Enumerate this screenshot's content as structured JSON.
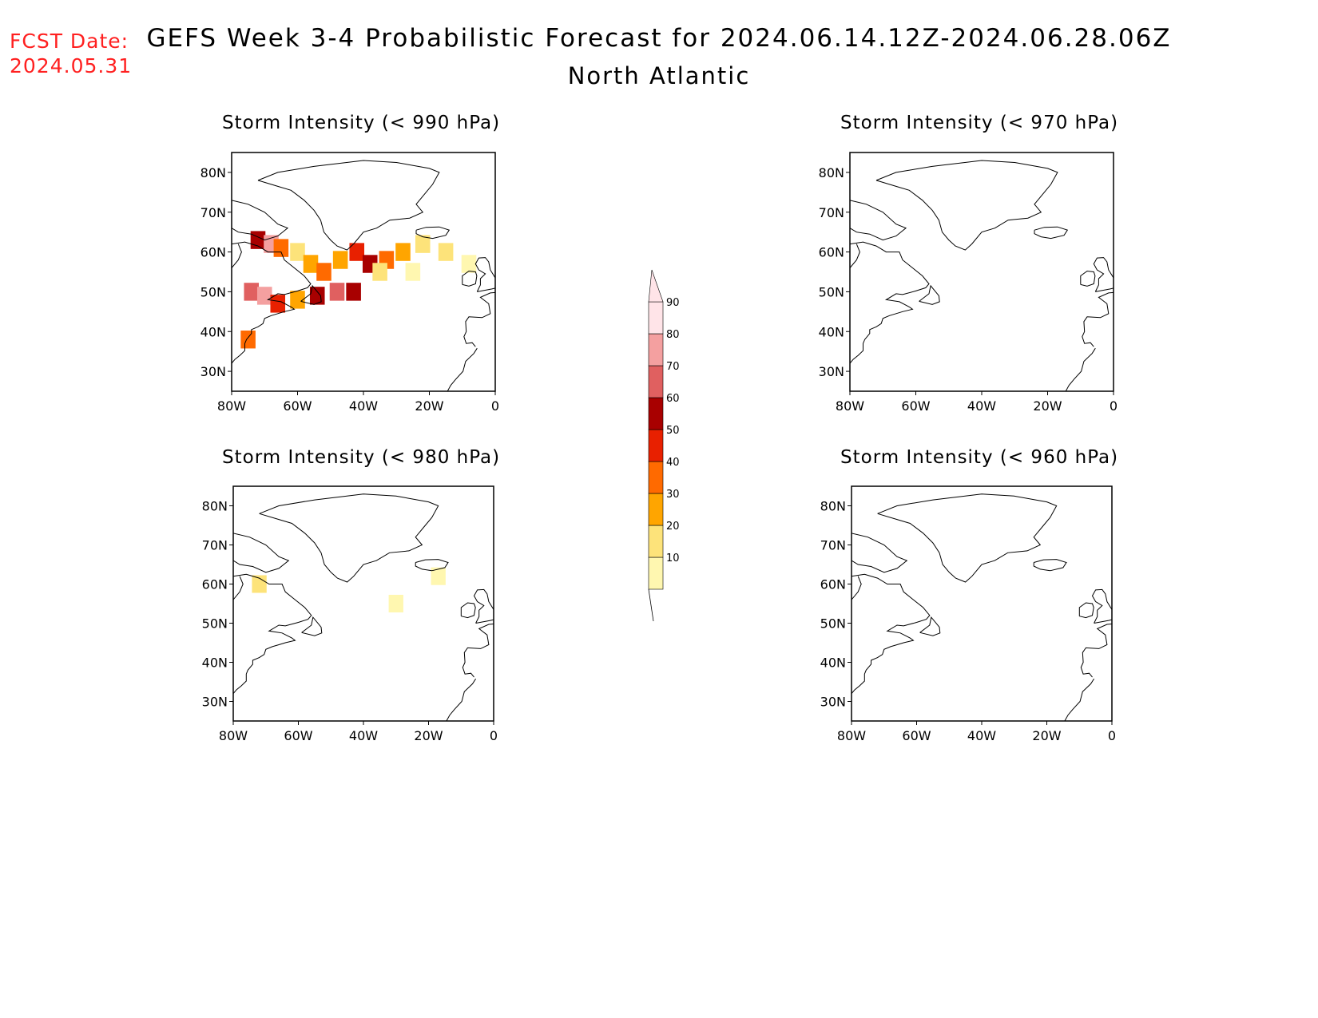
{
  "header": {
    "fcst_label": "FCST Date:",
    "fcst_date": "2024.05.31",
    "title": "GEFS Week 3-4 Probabilistic Forecast for 2024.06.14.12Z-2024.06.28.06Z",
    "subtitle": "North Atlantic"
  },
  "axes": {
    "lat_labels": [
      "80N",
      "70N",
      "60N",
      "50N",
      "40N",
      "30N"
    ],
    "lon_labels": [
      "80W",
      "60W",
      "40W",
      "20W",
      "0"
    ]
  },
  "panels": [
    {
      "title": "Storm Intensity (< 990 hPa)"
    },
    {
      "title": "Storm Intensity (< 970 hPa)"
    },
    {
      "title": "Storm Intensity (< 980 hPa)"
    },
    {
      "title": "Storm Intensity (< 960 hPa)"
    }
  ],
  "colorbar": {
    "labels": [
      "10",
      "20",
      "30",
      "40",
      "50",
      "60",
      "70",
      "80",
      "90"
    ],
    "colors": [
      "#fff7b0",
      "#fde37a",
      "#ffa500",
      "#ff6a00",
      "#e82000",
      "#a80000",
      "#e06060",
      "#f4a0a0",
      "#ffe4e8"
    ]
  },
  "chart_data": {
    "type": "heatmap",
    "units": "probability (%)",
    "lon_range": [
      -80,
      0
    ],
    "lat_range": [
      25,
      85
    ],
    "panels": [
      {
        "title": "Storm Intensity (< 990 hPa)",
        "cells": [
          {
            "lon": -72,
            "lat": 63,
            "value": 60
          },
          {
            "lon": -68,
            "lat": 62,
            "value": 80
          },
          {
            "lon": -65,
            "lat": 61,
            "value": 40
          },
          {
            "lon": -60,
            "lat": 60,
            "value": 20
          },
          {
            "lon": -56,
            "lat": 57,
            "value": 30
          },
          {
            "lon": -52,
            "lat": 55,
            "value": 40
          },
          {
            "lon": -47,
            "lat": 58,
            "value": 30
          },
          {
            "lon": -42,
            "lat": 60,
            "value": 50
          },
          {
            "lon": -38,
            "lat": 57,
            "value": 60
          },
          {
            "lon": -33,
            "lat": 58,
            "value": 40
          },
          {
            "lon": -28,
            "lat": 60,
            "value": 30
          },
          {
            "lon": -22,
            "lat": 62,
            "value": 20
          },
          {
            "lon": -15,
            "lat": 60,
            "value": 20
          },
          {
            "lon": -8,
            "lat": 57,
            "value": 10
          },
          {
            "lon": -74,
            "lat": 50,
            "value": 70
          },
          {
            "lon": -70,
            "lat": 49,
            "value": 80
          },
          {
            "lon": -66,
            "lat": 47,
            "value": 50
          },
          {
            "lon": -60,
            "lat": 48,
            "value": 30
          },
          {
            "lon": -54,
            "lat": 49,
            "value": 60
          },
          {
            "lon": -48,
            "lat": 50,
            "value": 70
          },
          {
            "lon": -43,
            "lat": 50,
            "value": 60
          },
          {
            "lon": -75,
            "lat": 38,
            "value": 40
          },
          {
            "lon": -35,
            "lat": 55,
            "value": 20
          },
          {
            "lon": -25,
            "lat": 55,
            "value": 10
          }
        ]
      },
      {
        "title": "Storm Intensity (< 970 hPa)",
        "cells": []
      },
      {
        "title": "Storm Intensity (< 980 hPa)",
        "cells": [
          {
            "lon": -72,
            "lat": 60,
            "value": 20
          },
          {
            "lon": -30,
            "lat": 55,
            "value": 10
          },
          {
            "lon": -17,
            "lat": 62,
            "value": 10
          }
        ]
      },
      {
        "title": "Storm Intensity (< 960 hPa)",
        "cells": []
      }
    ]
  }
}
